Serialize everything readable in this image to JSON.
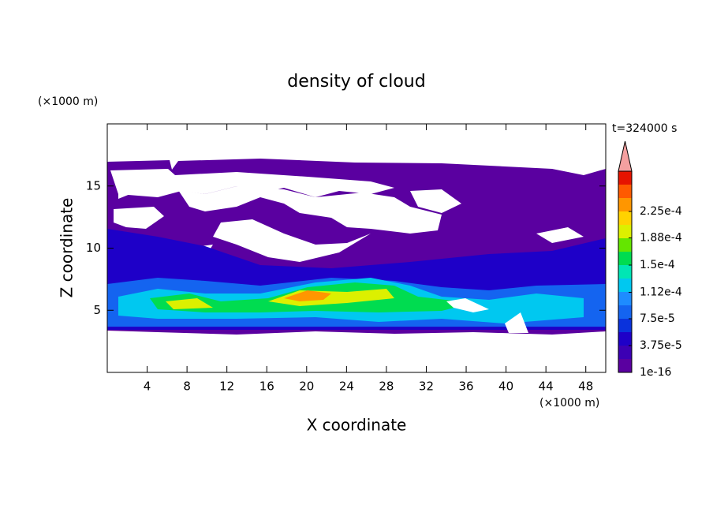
{
  "chart_data": {
    "type": "contour",
    "title": "density of cloud",
    "xlabel": "X coordinate",
    "ylabel": "Z coordinate",
    "x_unit": "(×1000 m)",
    "y_unit": "(×1000 m)",
    "time_label": "t=324000 s",
    "xlim": [
      0,
      50
    ],
    "xticks": [
      4,
      8,
      12,
      16,
      20,
      24,
      28,
      32,
      36,
      40,
      44,
      48
    ],
    "ylim": [
      0,
      20
    ],
    "yticks": [
      5,
      10,
      15
    ],
    "colorbar_ticks": [
      {
        "value": 1e-16,
        "label": "1e-16"
      },
      {
        "value": 3.75e-05,
        "label": "3.75e-5"
      },
      {
        "value": 7.5e-05,
        "label": "7.5e-5"
      },
      {
        "value": 0.000112,
        "label": "1.12e-4"
      },
      {
        "value": 0.00015,
        "label": "1.5e-4"
      },
      {
        "value": 0.000188,
        "label": "1.88e-4"
      },
      {
        "value": 0.000225,
        "label": "2.25e-4"
      }
    ],
    "colorbar_colors": [
      "#5a00a0",
      "#3c00b4",
      "#1e00c8",
      "#0a32dc",
      "#1464f0",
      "#1e8cff",
      "#00c8f0",
      "#00e6b4",
      "#00dc50",
      "#64e600",
      "#dcf000",
      "#ffd200",
      "#ff9600",
      "#ff5a00",
      "#e61400"
    ],
    "extend_color": "#f4a0a0"
  }
}
